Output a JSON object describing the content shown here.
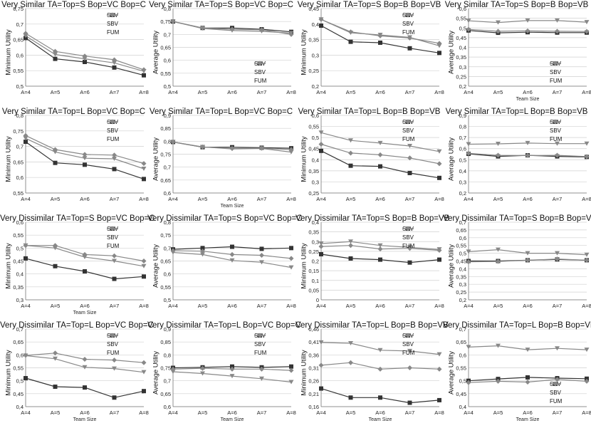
{
  "colors": {
    "SSV": "#333333",
    "SBV": "#888888",
    "FUM": "#888888",
    "grid": "#d0d0d0",
    "axis": "#777777"
  },
  "chart_data": [
    {
      "type": "line",
      "title": "Very Similar TA=Top=S Bop=VC Bop=C",
      "ylabel": "Minimum Utility",
      "xlabel": "",
      "categories": [
        "A=4",
        "A=5",
        "A=6",
        "A=7",
        "A=8"
      ],
      "ylim": [
        0.5,
        0.75
      ],
      "yticks": [
        "0,5",
        "0,55",
        "0,6",
        "0,65",
        "0,7",
        "0,75"
      ],
      "legend": "top-right",
      "series": [
        {
          "name": "SSV",
          "values": [
            0.655,
            0.588,
            0.578,
            0.56,
            0.535
          ]
        },
        {
          "name": "SBV",
          "values": [
            0.67,
            0.612,
            0.597,
            0.585,
            0.553
          ]
        },
        {
          "name": "FUM",
          "values": [
            0.662,
            0.602,
            0.588,
            0.575,
            0.548
          ]
        }
      ]
    },
    {
      "type": "line",
      "title": "Very Similar TA=Top=S Bop=VC Bop=C",
      "ylabel": "Average Utility",
      "xlabel": "",
      "categories": [
        "A=4",
        "A=5",
        "A=6",
        "A=7",
        "A=8"
      ],
      "ylim": [
        0.5,
        0.8
      ],
      "yticks": [
        "0,5",
        "0,55",
        "0,6",
        "0,65",
        "0,7",
        "0,75",
        "0,8"
      ],
      "legend": "bottom-right",
      "series": [
        {
          "name": "SSV",
          "values": [
            0.75,
            0.725,
            0.725,
            0.72,
            0.71
          ]
        },
        {
          "name": "SBV",
          "values": [
            0.75,
            0.725,
            0.72,
            0.718,
            0.7
          ]
        },
        {
          "name": "FUM",
          "values": [
            0.75,
            0.723,
            0.715,
            0.712,
            0.705
          ]
        }
      ]
    },
    {
      "type": "line",
      "title": "Very Similar TA=Top=S Bop=B Bop=VB",
      "ylabel": "Minimum Utility",
      "xlabel": "",
      "categories": [
        "A=4",
        "A=5",
        "A=6",
        "A=7",
        "A=8"
      ],
      "ylim": [
        0.2,
        0.45
      ],
      "yticks": [
        "0,2",
        "0,25",
        "0,3",
        "0,35",
        "0,4",
        "0,45"
      ],
      "legend": "top-right",
      "series": [
        {
          "name": "SSV",
          "values": [
            0.395,
            0.343,
            0.34,
            0.322,
            0.307
          ]
        },
        {
          "name": "SBV",
          "values": [
            0.415,
            0.375,
            0.362,
            0.355,
            0.338
          ]
        },
        {
          "name": "FUM",
          "values": [
            0.415,
            0.372,
            0.365,
            0.357,
            0.33
          ]
        }
      ]
    },
    {
      "type": "line",
      "title": "Very Similar TA=Top=S Bop=B Bop=VB",
      "ylabel": "Average Utility",
      "xlabel": "Team Size",
      "categories": [
        "A=4",
        "A=5",
        "A=6",
        "A=7",
        "A=8"
      ],
      "ylim": [
        0.2,
        0.6
      ],
      "yticks": [
        "0,2",
        "0,25",
        "0,3",
        "0,35",
        "0,4",
        "0,45",
        "0,5",
        "0,55",
        "0,6"
      ],
      "legend": "bottom-right",
      "series": [
        {
          "name": "SSV",
          "values": [
            0.487,
            0.475,
            0.478,
            0.476,
            0.476
          ]
        },
        {
          "name": "SBV",
          "values": [
            0.493,
            0.483,
            0.485,
            0.483,
            0.482
          ]
        },
        {
          "name": "FUM",
          "values": [
            0.537,
            0.528,
            0.538,
            0.538,
            0.53
          ]
        }
      ]
    },
    {
      "type": "line",
      "title": "Very Similar TA=Top=L Bop=VC Bop=C",
      "ylabel": "Minimum Utility",
      "xlabel": "",
      "categories": [
        "A=4",
        "A=5",
        "A=6",
        "A=7",
        "A=8"
      ],
      "ylim": [
        0.55,
        0.8
      ],
      "yticks": [
        "0,55",
        "0,6",
        "0,65",
        "0,7",
        "0,75",
        "0,8"
      ],
      "legend": "top-right",
      "series": [
        {
          "name": "SSV",
          "values": [
            0.715,
            0.647,
            0.641,
            0.627,
            0.595
          ]
        },
        {
          "name": "SBV",
          "values": [
            0.735,
            0.69,
            0.674,
            0.672,
            0.645
          ]
        },
        {
          "name": "FUM",
          "values": [
            0.726,
            0.682,
            0.662,
            0.66,
            0.628
          ]
        }
      ]
    },
    {
      "type": "line",
      "title": "Very Similar TA=Top=L Bop=VC Bop=C",
      "ylabel": "Average Utility",
      "xlabel": "Team Size",
      "categories": [
        "A=4",
        "A=5",
        "A=6",
        "A=7",
        "A=8"
      ],
      "ylim": [
        0.6,
        0.9
      ],
      "yticks": [
        "0,6",
        "0,65",
        "0,7",
        "0,75",
        "0,8",
        "0,85",
        "0,9"
      ],
      "legend": "none",
      "series": [
        {
          "name": "SSV",
          "values": [
            0.797,
            0.777,
            0.777,
            0.775,
            0.773
          ]
        },
        {
          "name": "SBV",
          "values": [
            0.797,
            0.778,
            0.772,
            0.773,
            0.768
          ]
        },
        {
          "name": "FUM",
          "values": [
            0.797,
            0.778,
            0.77,
            0.772,
            0.758
          ]
        }
      ]
    },
    {
      "type": "line",
      "title": "Very Similar TA=Top=L Bop=B Bop=VB",
      "ylabel": "Minimum Utility",
      "xlabel": "",
      "categories": [
        "A=4",
        "A=5",
        "A=6",
        "A=7",
        "A=8"
      ],
      "ylim": [
        0.25,
        0.6
      ],
      "yticks": [
        "0,25",
        "0,3",
        "0,35",
        "0,4",
        "0,45",
        "0,5",
        "0,55",
        "0,6"
      ],
      "legend": "top-right",
      "series": [
        {
          "name": "SSV",
          "values": [
            0.44,
            0.373,
            0.37,
            0.34,
            0.318
          ]
        },
        {
          "name": "SBV",
          "values": [
            0.47,
            0.43,
            0.422,
            0.408,
            0.382
          ]
        },
        {
          "name": "FUM",
          "values": [
            0.522,
            0.487,
            0.475,
            0.462,
            0.437
          ]
        }
      ]
    },
    {
      "type": "line",
      "title": "Very Similar TA=Top=L Bop=B Bop=VB",
      "ylabel": "Average Utility",
      "xlabel": "",
      "categories": [
        "A=4",
        "A=5",
        "A=6",
        "A=7",
        "A=8"
      ],
      "ylim": [
        0.2,
        0.9
      ],
      "yticks": [
        "0,2",
        "0,3",
        "0,4",
        "0,5",
        "0,6",
        "0,7",
        "0,8",
        "0,9"
      ],
      "legend": "top-right",
      "series": [
        {
          "name": "SSV",
          "values": [
            0.553,
            0.53,
            0.54,
            0.53,
            0.525
          ]
        },
        {
          "name": "SBV",
          "values": [
            0.558,
            0.54,
            0.538,
            0.54,
            0.528
          ]
        },
        {
          "name": "FUM",
          "values": [
            0.64,
            0.643,
            0.65,
            0.645,
            0.645
          ]
        }
      ]
    },
    {
      "type": "line",
      "title": "Very Dissimilar TA=Top=S Bop=VC Bop=C",
      "ylabel": "Minimum Utility",
      "xlabel": "Team Size",
      "categories": [
        "A=4",
        "A=5",
        "A=6",
        "A=7",
        "A=8"
      ],
      "ylim": [
        0.3,
        0.6
      ],
      "yticks": [
        "0,3",
        "0,35",
        "0,4",
        "0,45",
        "0,5",
        "0,55",
        "0,6"
      ],
      "legend": "top-right",
      "series": [
        {
          "name": "SSV",
          "values": [
            0.46,
            0.43,
            0.41,
            0.381,
            0.39
          ]
        },
        {
          "name": "SBV",
          "values": [
            0.51,
            0.51,
            0.475,
            0.47,
            0.45
          ]
        },
        {
          "name": "FUM",
          "values": [
            0.51,
            0.5,
            0.465,
            0.45,
            0.43
          ]
        }
      ]
    },
    {
      "type": "line",
      "title": "Very Dissimilar TA=Top=S Bop=VC Bop=C",
      "ylabel": "Average Utility",
      "xlabel": "",
      "categories": [
        "A=4",
        "A=5",
        "A=6",
        "A=7",
        "A=8"
      ],
      "ylim": [
        0.5,
        0.8
      ],
      "yticks": [
        "0,5",
        "0,55",
        "0,6",
        "0,65",
        "0,7",
        "0,75",
        "0,8"
      ],
      "legend": "none",
      "series": [
        {
          "name": "SSV",
          "values": [
            0.695,
            0.7,
            0.705,
            0.697,
            0.7
          ]
        },
        {
          "name": "SBV",
          "values": [
            0.69,
            0.688,
            0.675,
            0.672,
            0.66
          ]
        },
        {
          "name": "FUM",
          "values": [
            0.683,
            0.675,
            0.652,
            0.645,
            0.625
          ]
        }
      ]
    },
    {
      "type": "line",
      "title": "Very Dissimilar TA=Top=S Bop=B Bop=VB",
      "ylabel": "Minimum Utility",
      "xlabel": "",
      "categories": [
        "A=4",
        "A=5",
        "A=6",
        "A=7",
        "A=8"
      ],
      "ylim": [
        0.0,
        0.4
      ],
      "yticks": [
        "0",
        "0,05",
        "0,1",
        "0,15",
        "0,2",
        "0,25",
        "0,3",
        "0,35",
        "0,4"
      ],
      "legend": "top-right",
      "series": [
        {
          "name": "SSV",
          "values": [
            0.235,
            0.213,
            0.207,
            0.192,
            0.207
          ]
        },
        {
          "name": "SBV",
          "values": [
            0.275,
            0.28,
            0.262,
            0.265,
            0.255
          ]
        },
        {
          "name": "FUM",
          "values": [
            0.29,
            0.3,
            0.28,
            0.27,
            0.26
          ]
        }
      ]
    },
    {
      "type": "line",
      "title": "Very Dissimilar TA=Top=S Bop=B Bop=VB",
      "ylabel": "Average Utility",
      "xlabel": "",
      "categories": [
        "A=4",
        "A=5",
        "A=6",
        "A=7",
        "A=8"
      ],
      "ylim": [
        0.2,
        0.7
      ],
      "yticks": [
        "0,2",
        "0,25",
        "0,3",
        "0,35",
        "0,4",
        "0,45",
        "0,5",
        "0,55",
        "0,6",
        "0,65",
        "0,7"
      ],
      "legend": "none",
      "series": [
        {
          "name": "SSV",
          "values": [
            0.45,
            0.45,
            0.455,
            0.46,
            0.455
          ]
        },
        {
          "name": "SBV",
          "values": [
            0.445,
            0.447,
            0.455,
            0.463,
            0.455
          ]
        },
        {
          "name": "FUM",
          "values": [
            0.51,
            0.523,
            0.5,
            0.5,
            0.49
          ]
        }
      ]
    },
    {
      "type": "line",
      "title": "Very Dissimilar TA=Top=L Bop=VC Bop=C",
      "ylabel": "Minimum Utility",
      "xlabel": "Team Size",
      "categories": [
        "A=4",
        "A=5",
        "A=6",
        "A=7",
        "A=8"
      ],
      "ylim": [
        0.4,
        0.7
      ],
      "yticks": [
        "0,4",
        "0,45",
        "0,5",
        "0,55",
        "0,6",
        "0,65",
        "0,7"
      ],
      "legend": "top-right",
      "series": [
        {
          "name": "SSV",
          "values": [
            0.51,
            0.477,
            0.474,
            0.435,
            0.46
          ]
        },
        {
          "name": "SBV",
          "values": [
            0.598,
            0.607,
            0.583,
            0.58,
            0.57
          ]
        },
        {
          "name": "FUM",
          "values": [
            0.597,
            0.585,
            0.552,
            0.547,
            0.533
          ]
        }
      ]
    },
    {
      "type": "line",
      "title": "Very Dissimilar TA=Top=L Bop=VC Bop=C",
      "ylabel": "Average Utility",
      "xlabel": "Team Size",
      "categories": [
        "A=4",
        "A=5",
        "A=6",
        "A=7",
        "A=8"
      ],
      "ylim": [
        0.6,
        0.9
      ],
      "yticks": [
        "0,6",
        "0,65",
        "0,7",
        "0,75",
        "0,8",
        "0,85",
        "0,9"
      ],
      "legend": "top-right",
      "series": [
        {
          "name": "SSV",
          "values": [
            0.75,
            0.752,
            0.755,
            0.752,
            0.755
          ]
        },
        {
          "name": "SBV",
          "values": [
            0.745,
            0.748,
            0.745,
            0.745,
            0.74
          ]
        },
        {
          "name": "FUM",
          "values": [
            0.735,
            0.728,
            0.718,
            0.708,
            0.695
          ]
        }
      ]
    },
    {
      "type": "line",
      "title": "Very Dissimilar TA=Top=L Bop=B Bop=VB",
      "ylabel": "Minimum Utility",
      "xlabel": "Team Size",
      "categories": [
        "A=4",
        "A=5",
        "A=6",
        "A=7",
        "A=8"
      ],
      "ylim": [
        0.16,
        0.46
      ],
      "yticks": [
        "0,16",
        "0,21",
        "0,26",
        "0,31",
        "0,36",
        "0,41",
        "0,46"
      ],
      "legend": "top-right",
      "series": [
        {
          "name": "SSV",
          "values": [
            0.23,
            0.195,
            0.195,
            0.175,
            0.185
          ]
        },
        {
          "name": "SBV",
          "values": [
            0.32,
            0.33,
            0.305,
            0.31,
            0.305
          ]
        },
        {
          "name": "FUM",
          "values": [
            0.408,
            0.405,
            0.378,
            0.375,
            0.362
          ]
        }
      ]
    },
    {
      "type": "line",
      "title": "Very Dissimilar TA=Top=L Bop=B Bop=VB",
      "ylabel": "Average Utility",
      "xlabel": "Team Size",
      "categories": [
        "A=4",
        "A=5",
        "A=6",
        "A=7",
        "A=8"
      ],
      "ylim": [
        0.4,
        0.7
      ],
      "yticks": [
        "0,4",
        "0,45",
        "0,5",
        "0,55",
        "0,6",
        "0,65",
        "0,7"
      ],
      "legend": "bottom-right",
      "series": [
        {
          "name": "SSV",
          "values": [
            0.5,
            0.507,
            0.513,
            0.51,
            0.508
          ]
        },
        {
          "name": "SBV",
          "values": [
            0.493,
            0.498,
            0.495,
            0.505,
            0.498
          ]
        },
        {
          "name": "FUM",
          "values": [
            0.63,
            0.635,
            0.62,
            0.625,
            0.62
          ]
        }
      ]
    }
  ]
}
